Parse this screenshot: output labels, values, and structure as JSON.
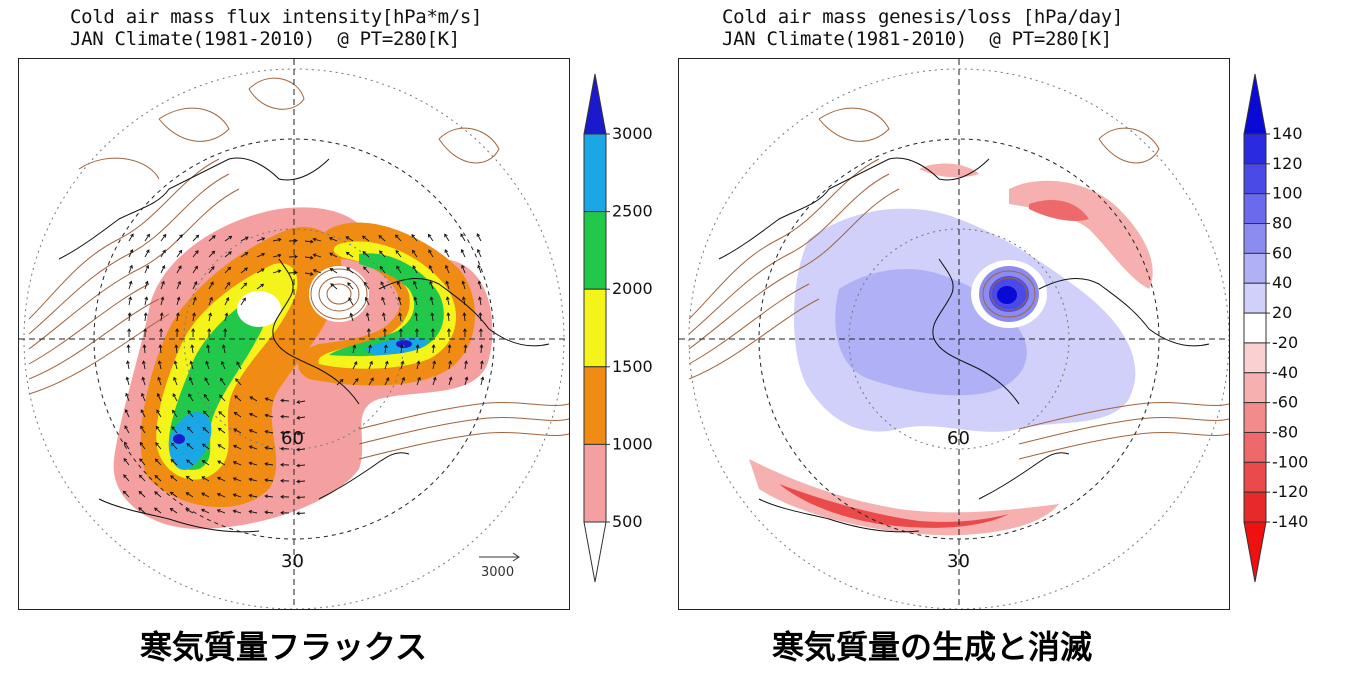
{
  "left_panel": {
    "title_line1": "Cold air mass flux intensity[hPa*m/s]",
    "title_line2": "JAN Climate(1981-2010)  @ PT=280[K]",
    "caption": "寒気質量フラックス",
    "lat_labels": [
      "60",
      "30"
    ],
    "ref_vector_label": "3000",
    "colorbar": {
      "labels": [
        "3000",
        "2500",
        "2000",
        "1500",
        "1000",
        "500"
      ],
      "colors": [
        "#1a1acc",
        "#1aa7e6",
        "#22c84a",
        "#f4f41a",
        "#f08c14",
        "#f4a0a0",
        "#ffffff"
      ]
    }
  },
  "right_panel": {
    "title_line1": "Cold air mass genesis/loss [hPa/day]",
    "title_line2": "JAN Climate(1981-2010)  @ PT=280[K]",
    "caption": "寒気質量の生成と消滅",
    "lat_labels": [
      "60",
      "30"
    ],
    "colorbar": {
      "labels": [
        "140",
        "120",
        "100",
        "80",
        "60",
        "40",
        "20",
        "-20",
        "-40",
        "-60",
        "-80",
        "-100",
        "-120",
        "-140"
      ],
      "colors": [
        "#0a0ad6",
        "#2a2ae0",
        "#4a4ae6",
        "#6a6aec",
        "#8c8cf0",
        "#b0b0f6",
        "#d0d0fa",
        "#ffffff",
        "#fad0d0",
        "#f6b0b0",
        "#f28c8c",
        "#ee6a6a",
        "#ea4a4a",
        "#e62a2a",
        "#f01010"
      ]
    }
  },
  "map_colors": {
    "contour": "#a0643c",
    "coast": "#111111"
  }
}
